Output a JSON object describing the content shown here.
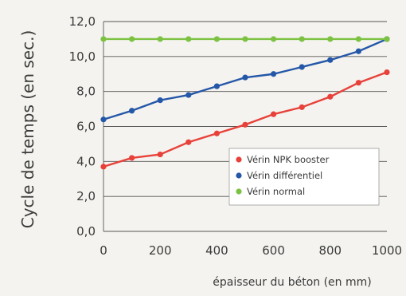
{
  "chart_data": {
    "type": "line",
    "title": "",
    "ylabel": "Cycle de temps (en sec.)",
    "xlabel": "épaisseur du béton (en mm)",
    "xlim": [
      0,
      1000
    ],
    "ylim": [
      0,
      12
    ],
    "x_ticks": [
      "0",
      "200",
      "400",
      "600",
      "800",
      "1000"
    ],
    "x_tick_values": [
      0,
      200,
      400,
      600,
      800,
      1000
    ],
    "y_ticks": [
      "0,0",
      "2,0",
      "4,0",
      "6,0",
      "8,0",
      "10,0",
      "12,0"
    ],
    "y_tick_values": [
      0,
      2,
      4,
      6,
      8,
      10,
      12
    ],
    "grid": "horizontal",
    "legend_position": "lower-right",
    "x": [
      0,
      100,
      200,
      300,
      400,
      500,
      600,
      700,
      800,
      900,
      1000
    ],
    "series": [
      {
        "name": "Vérin NPK booster",
        "color": "#e8413a",
        "values": [
          3.7,
          4.2,
          4.4,
          5.1,
          5.6,
          6.1,
          6.7,
          7.1,
          7.7,
          8.5,
          9.1
        ]
      },
      {
        "name": "Vérin différentiel",
        "color": "#2457a8",
        "values": [
          6.4,
          6.9,
          7.5,
          7.8,
          8.3,
          8.8,
          9.0,
          9.4,
          9.8,
          10.3,
          11.0
        ]
      },
      {
        "name": "Vérin normal",
        "color": "#7cc242",
        "values": [
          11.0,
          11.0,
          11.0,
          11.0,
          11.0,
          11.0,
          11.0,
          11.0,
          11.0,
          11.0,
          11.0
        ]
      }
    ]
  }
}
